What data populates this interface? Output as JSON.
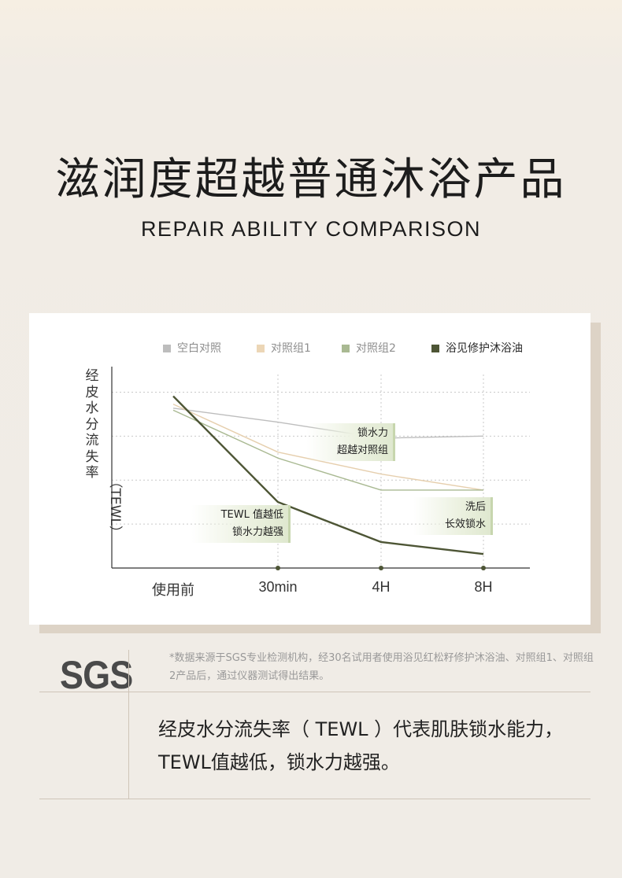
{
  "header": {
    "title": "滋润度超越普通沐浴产品",
    "subtitle": "REPAIR ABILITY COMPARISON"
  },
  "chart_data": {
    "type": "line",
    "ylabel": "经皮水分流失率",
    "ylabel_unit": "（TEWL）",
    "categories": [
      "使用前",
      "30min",
      "4H",
      "8H"
    ],
    "ylim": [
      0,
      100
    ],
    "grid": "horizontal-dashed",
    "legend_position": "top",
    "series": [
      {
        "name": "空白对照",
        "color": "#bdbdbd",
        "values": [
          80,
          73,
          65,
          66
        ]
      },
      {
        "name": "对照组1",
        "color": "#e6cfae",
        "values": [
          82,
          58,
          47,
          39
        ]
      },
      {
        "name": "对照组2",
        "color": "#a9b992",
        "values": [
          79,
          55,
          39,
          39
        ]
      },
      {
        "name": "浴见修护沐浴油",
        "color": "#4d5535",
        "values": [
          86,
          33,
          13,
          7
        ]
      }
    ],
    "annotations": [
      {
        "line1": "锁水力",
        "line2": "超越对照组"
      },
      {
        "line1": "TEWL 值越低",
        "line2": "锁水力越强"
      },
      {
        "line1": "洗后",
        "line2": "长效锁水"
      }
    ]
  },
  "sgs": {
    "logo_text": "SGS",
    "footnote": "*数据来源于SGS专业检测机构，经30名试用者使用浴见红松籽修护沐浴油、对照组1、对照组2产品后，通过仪器测试得出结果。",
    "description": "经皮水分流失率（ TEWL ）代表肌肤锁水能力，TEWL值越低，锁水力越强。"
  }
}
